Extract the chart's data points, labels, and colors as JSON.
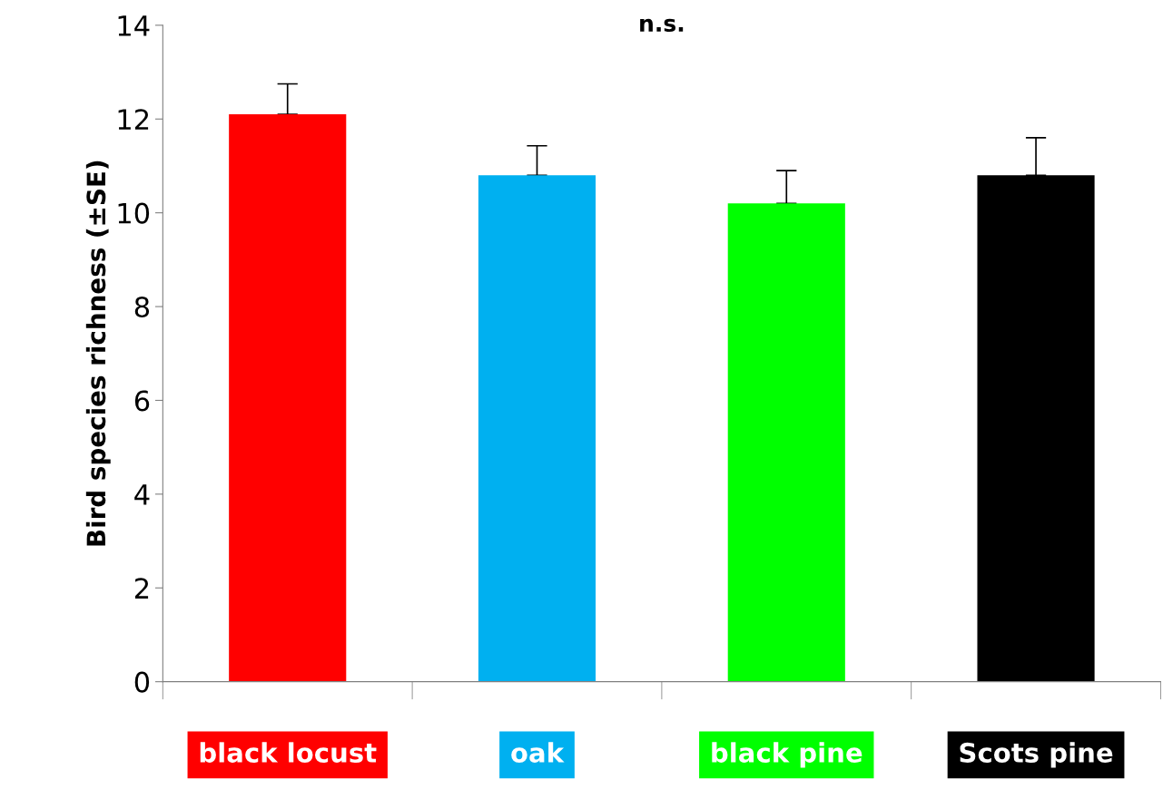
{
  "chart_data": {
    "type": "bar",
    "ylabel": "Bird species richness (±SE)",
    "categories": [
      "black locust",
      "oak",
      "black pine",
      "Scots pine"
    ],
    "values": [
      12.1,
      10.8,
      10.2,
      10.8
    ],
    "colors": [
      "#ff0000",
      "#00b0f0",
      "#00ff00",
      "#000000"
    ],
    "errors": [
      [
        12.1,
        12.75
      ],
      [
        10.8,
        11.43
      ],
      [
        10.2,
        10.9
      ],
      [
        10.8,
        11.6
      ]
    ],
    "annotations": [
      "n.s."
    ],
    "ylim": [
      0,
      14
    ],
    "yticks": [
      0,
      2,
      4,
      6,
      8,
      10,
      12,
      14
    ],
    "grid": false
  }
}
